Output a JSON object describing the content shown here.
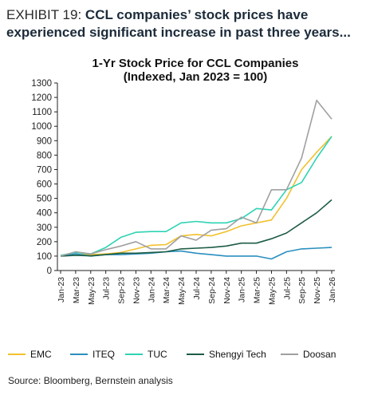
{
  "exhibit": {
    "label": "EXHIBIT 19:",
    "headline": "CCL companies’ stock prices have experienced significant increase in past three years..."
  },
  "source": "Source: Bloomberg, Bernstein analysis",
  "chart_data": {
    "type": "line",
    "title": "1-Yr Stock Price for CCL Companies",
    "subtitle": "(Indexed, Jan 2023 = 100)",
    "xlabel": "",
    "ylabel": "",
    "ylim": [
      0,
      1300
    ],
    "yticks": [
      0,
      100,
      200,
      300,
      400,
      500,
      600,
      700,
      800,
      900,
      1000,
      1100,
      1200,
      1300
    ],
    "x": [
      "Jan-23",
      "Mar-23",
      "May-23",
      "Jul-23",
      "Sep-23",
      "Nov-23",
      "Jan-24",
      "Mar-24",
      "May-24",
      "Jul-24",
      "Sep-24",
      "Nov-24",
      "Jan-25",
      "Mar-25",
      "May-25",
      "Jul-25",
      "Sep-25",
      "Nov-25",
      "Jan-26"
    ],
    "grid": false,
    "legend_position": "bottom",
    "series": [
      {
        "name": "EMC",
        "color": "#f2c12e",
        "values": [
          105,
          112,
          110,
          115,
          125,
          150,
          175,
          180,
          240,
          250,
          240,
          270,
          310,
          330,
          350,
          500,
          700,
          820,
          930
        ]
      },
      {
        "name": "ITEQ",
        "color": "#2a8fbf",
        "values": [
          100,
          115,
          100,
          110,
          110,
          115,
          120,
          130,
          135,
          120,
          110,
          100,
          100,
          100,
          80,
          130,
          150,
          155,
          160
        ]
      },
      {
        "name": "TUC",
        "color": "#2ed3b4",
        "values": [
          105,
          125,
          115,
          160,
          230,
          265,
          270,
          270,
          330,
          340,
          330,
          330,
          360,
          430,
          420,
          560,
          610,
          780,
          930
        ]
      },
      {
        "name": "Shengyi Tech",
        "color": "#1d5c45",
        "values": [
          100,
          105,
          102,
          110,
          120,
          120,
          125,
          130,
          150,
          155,
          160,
          170,
          190,
          190,
          220,
          260,
          330,
          400,
          490
        ]
      },
      {
        "name": "Doosan",
        "color": "#a0a0a0",
        "values": [
          100,
          130,
          115,
          145,
          170,
          200,
          150,
          150,
          240,
          210,
          280,
          290,
          370,
          330,
          560,
          560,
          780,
          1180,
          1050
        ]
      }
    ]
  }
}
